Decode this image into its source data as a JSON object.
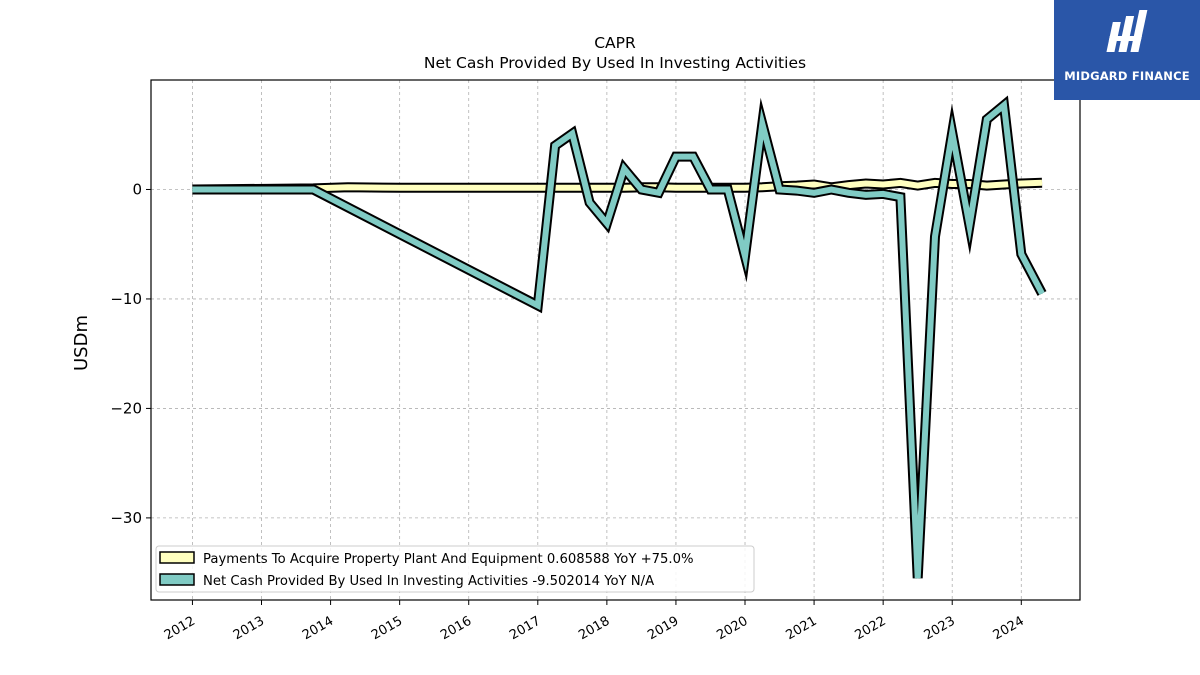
{
  "logo": {
    "name": "MIDGARD FINANCE"
  },
  "chart_data": {
    "type": "line",
    "title": "CAPR",
    "subtitle": "Net Cash Provided By Used In Investing Activities",
    "xlabel": "",
    "ylabel": "USDm",
    "xlim": [
      2011.4,
      2024.85
    ],
    "ylim": [
      -37.5,
      10
    ],
    "x_ticks": [
      2012,
      2013,
      2014,
      2015,
      2016,
      2017,
      2018,
      2019,
      2020,
      2021,
      2022,
      2023,
      2024
    ],
    "x_tick_labels": [
      "2012",
      "2013",
      "2014",
      "2015",
      "2016",
      "2017",
      "2018",
      "2019",
      "2020",
      "2021",
      "2022",
      "2023",
      "2024"
    ],
    "y_ticks": [
      0,
      -10,
      -20,
      -30
    ],
    "y_tick_labels": [
      "0",
      "−10",
      "−20",
      "−30"
    ],
    "grid": true,
    "legend_position": "lower-left",
    "series": [
      {
        "name": "Payments To Acquire Property Plant And Equipment  0.608588 YoY +75.0%",
        "color": "#ffffbf",
        "x": [
          2012.0,
          2013.75,
          2014.25,
          2015.0,
          2015.5,
          2016.0,
          2016.5,
          2017.0,
          2017.25,
          2017.5,
          2017.75,
          2018.0,
          2018.25,
          2018.5,
          2018.75,
          2019.0,
          2019.25,
          2019.5,
          2019.75,
          2020.0,
          2020.25,
          2020.5,
          2020.75,
          2021.0,
          2021.25,
          2021.5,
          2021.75,
          2022.0,
          2022.25,
          2022.5,
          2022.75,
          2023.0,
          2023.25,
          2023.5,
          2023.75,
          2024.0,
          2024.3
        ],
        "values": [
          0.0,
          0.1,
          0.2,
          0.15,
          0.15,
          0.15,
          0.15,
          0.15,
          0.15,
          0.15,
          0.15,
          0.15,
          0.15,
          0.2,
          0.2,
          0.15,
          0.15,
          0.15,
          0.15,
          0.15,
          0.2,
          0.3,
          0.35,
          0.45,
          0.2,
          0.4,
          0.55,
          0.45,
          0.6,
          0.35,
          0.6,
          0.5,
          0.5,
          0.35,
          0.45,
          0.55,
          0.61
        ]
      },
      {
        "name": "Net Cash Provided By Used In Investing Activities  -9.502014 YoY N/A",
        "color": "#80cbc4",
        "x": [
          2012.0,
          2013.75,
          2017.0,
          2017.25,
          2017.5,
          2017.75,
          2018.0,
          2018.25,
          2018.5,
          2018.75,
          2019.0,
          2019.25,
          2019.5,
          2019.75,
          2020.0,
          2020.25,
          2020.5,
          2020.75,
          2021.0,
          2021.25,
          2021.5,
          2021.75,
          2022.0,
          2022.25,
          2022.5,
          2022.75,
          2023.0,
          2023.25,
          2023.5,
          2023.75,
          2024.0,
          2024.3
        ],
        "values": [
          0.0,
          0.0,
          -10.6,
          4.0,
          5.1,
          -1.2,
          -3.1,
          1.9,
          0.0,
          -0.3,
          3.0,
          3.0,
          0.0,
          0.0,
          -6.1,
          6.0,
          0.0,
          -0.1,
          -0.3,
          0.0,
          -0.3,
          -0.5,
          -0.4,
          -0.7,
          -35.5,
          -4.3,
          5.2,
          -3.3,
          6.4,
          7.7,
          -5.9,
          -9.5
        ]
      }
    ]
  }
}
